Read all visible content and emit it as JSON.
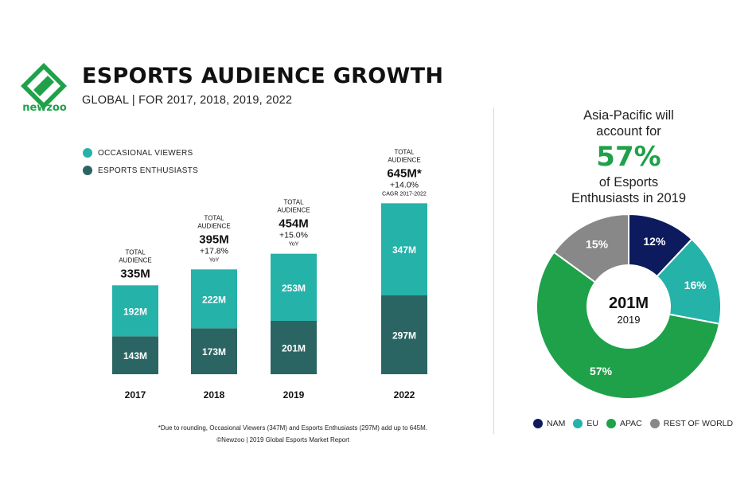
{
  "brand": {
    "name": "newzoo",
    "logo_icon": "newzoo-logo-icon",
    "color": "#1fa14a"
  },
  "header": {
    "title": "ESPORTS AUDIENCE GROWTH",
    "subtitle": "GLOBAL | FOR 2017, 2018, 2019, 2022"
  },
  "colors": {
    "occasional": "#25b2a9",
    "enthusiasts": "#2b6563",
    "nam": "#0d1a5e",
    "eu": "#25b2a9",
    "apac": "#1fa14a",
    "rest": "#888888"
  },
  "chart_data": [
    {
      "type": "bar",
      "stacked": true,
      "categories": [
        "2017",
        "2018",
        "2019",
        "2022"
      ],
      "series": [
        {
          "name": "ESPORTS ENTHUSIASTS",
          "values": [
            143,
            173,
            201,
            297
          ],
          "labels": [
            "143M",
            "173M",
            "201M",
            "297M"
          ]
        },
        {
          "name": "OCCASIONAL VIEWERS",
          "values": [
            192,
            222,
            253,
            347
          ],
          "labels": [
            "192M",
            "222M",
            "253M",
            "347M"
          ]
        }
      ],
      "totals": [
        {
          "label": "TOTAL\nAUDIENCE",
          "value": "335M",
          "growth": "",
          "growth_note": ""
        },
        {
          "label": "TOTAL\nAUDIENCE",
          "value": "395M",
          "growth": "+17.8%",
          "growth_note": "YoY"
        },
        {
          "label": "TOTAL\nAUDIENCE",
          "value": "454M",
          "growth": "+15.0%",
          "growth_note": "YoY"
        },
        {
          "label": "TOTAL\nAUDIENCE",
          "value": "645M*",
          "growth": "+14.0%",
          "growth_note": "CAGR 2017-2022"
        }
      ],
      "legend": [
        "OCCASIONAL VIEWERS",
        "ESPORTS ENTHUSIASTS"
      ],
      "legend_position": "top-left",
      "ylim": [
        0,
        700
      ],
      "grid": false
    },
    {
      "type": "pie",
      "donut": true,
      "center_value": "201M",
      "center_label": "2019",
      "slices": [
        {
          "name": "NAM",
          "value": 12,
          "label": "12%"
        },
        {
          "name": "EU",
          "value": 16,
          "label": "16%"
        },
        {
          "name": "APAC",
          "value": 57,
          "label": "57%"
        },
        {
          "name": "REST OF WORLD",
          "value": 15,
          "label": "15%"
        }
      ],
      "legend_position": "bottom"
    }
  ],
  "callout": {
    "line1": "Asia-Pacific will",
    "line2": "account for",
    "big": "57%",
    "line3": "of Esports",
    "line4": "Enthusiasts in 2019"
  },
  "footnote": "*Due to rounding, Occasional Viewers (347M) and Esports Enthusiasts (297M) add up to 645M.",
  "credit": "©Newzoo | 2019 Global Esports Market Report"
}
